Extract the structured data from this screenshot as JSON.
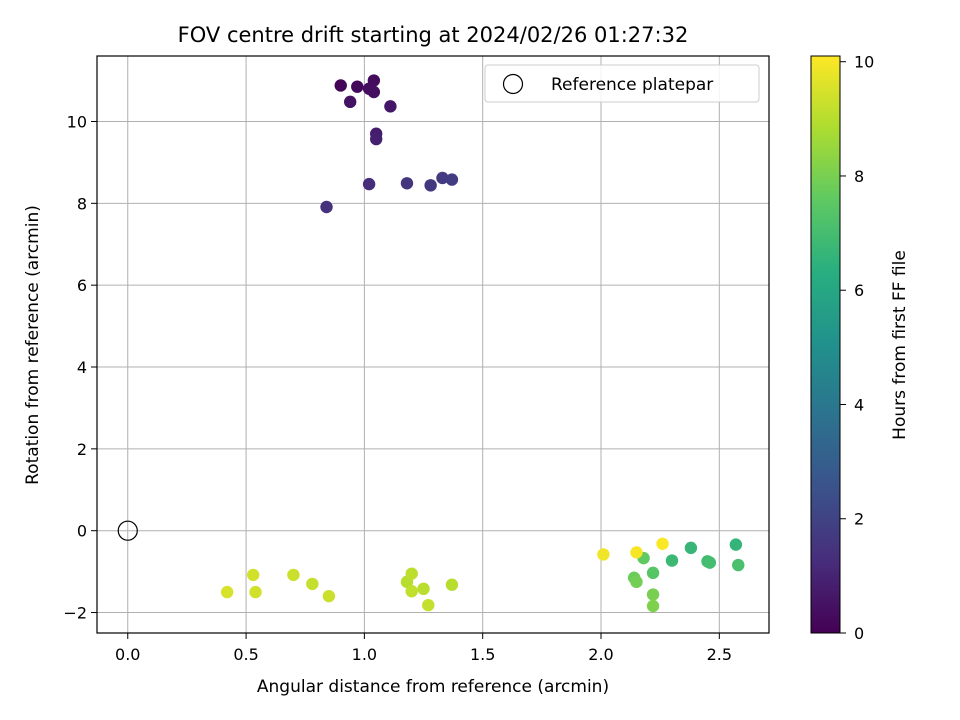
{
  "chart_data": {
    "type": "scatter",
    "title": "FOV centre drift starting at 2024/02/26 01:27:32",
    "xlabel": "Angular distance from reference (arcmin)",
    "ylabel": "Rotation from reference (arcmin)",
    "xlim": [
      -0.13,
      2.71
    ],
    "ylim": [
      -2.5,
      11.6
    ],
    "xticks": [
      0.0,
      0.5,
      1.0,
      1.5,
      2.0,
      2.5
    ],
    "xtick_labels": [
      "0.0",
      "0.5",
      "1.0",
      "1.5",
      "2.0",
      "2.5"
    ],
    "yticks": [
      -2,
      0,
      2,
      4,
      6,
      8,
      10
    ],
    "ytick_labels": [
      "−2",
      "0",
      "2",
      "4",
      "6",
      "8",
      "10"
    ],
    "grid": true,
    "legend_position": "top-right",
    "legend_entries": [
      "Reference platepar"
    ],
    "reference_point": {
      "x": 0.0,
      "y": 0.0
    },
    "colorbar": {
      "label": "Hours from first FF file",
      "colormap": "viridis",
      "range": [
        0,
        10.1
      ],
      "ticks": [
        0,
        2,
        4,
        6,
        8,
        10
      ],
      "tick_labels": [
        "0",
        "2",
        "4",
        "6",
        "8",
        "10"
      ]
    },
    "points": [
      {
        "x": 0.9,
        "y": 10.88,
        "hours": 0.1
      },
      {
        "x": 0.97,
        "y": 10.85,
        "hours": 0.2
      },
      {
        "x": 1.04,
        "y": 11.0,
        "hours": 0.3
      },
      {
        "x": 1.02,
        "y": 10.8,
        "hours": 0.35
      },
      {
        "x": 1.04,
        "y": 10.72,
        "hours": 0.4
      },
      {
        "x": 0.94,
        "y": 10.48,
        "hours": 0.5
      },
      {
        "x": 1.11,
        "y": 10.37,
        "hours": 0.6
      },
      {
        "x": 1.05,
        "y": 9.7,
        "hours": 0.8
      },
      {
        "x": 1.05,
        "y": 9.57,
        "hours": 0.9
      },
      {
        "x": 1.02,
        "y": 8.47,
        "hours": 1.3
      },
      {
        "x": 0.84,
        "y": 7.91,
        "hours": 1.4
      },
      {
        "x": 1.18,
        "y": 8.49,
        "hours": 1.5
      },
      {
        "x": 1.28,
        "y": 8.44,
        "hours": 1.6
      },
      {
        "x": 1.33,
        "y": 8.62,
        "hours": 1.7
      },
      {
        "x": 1.37,
        "y": 8.58,
        "hours": 1.8
      },
      {
        "x": 2.57,
        "y": -0.34,
        "hours": 6.6
      },
      {
        "x": 2.38,
        "y": -0.42,
        "hours": 6.7
      },
      {
        "x": 2.3,
        "y": -0.73,
        "hours": 6.8
      },
      {
        "x": 2.45,
        "y": -0.75,
        "hours": 6.9
      },
      {
        "x": 2.46,
        "y": -0.78,
        "hours": 7.0
      },
      {
        "x": 2.58,
        "y": -0.84,
        "hours": 7.1
      },
      {
        "x": 2.22,
        "y": -1.03,
        "hours": 7.4
      },
      {
        "x": 2.18,
        "y": -0.67,
        "hours": 7.6
      },
      {
        "x": 2.14,
        "y": -1.15,
        "hours": 7.8
      },
      {
        "x": 2.15,
        "y": -1.25,
        "hours": 7.9
      },
      {
        "x": 2.22,
        "y": -1.56,
        "hours": 8.0
      },
      {
        "x": 2.22,
        "y": -1.84,
        "hours": 8.1
      },
      {
        "x": 1.37,
        "y": -1.32,
        "hours": 9.0
      },
      {
        "x": 1.18,
        "y": -1.25,
        "hours": 9.0
      },
      {
        "x": 1.25,
        "y": -1.42,
        "hours": 9.05
      },
      {
        "x": 1.2,
        "y": -1.05,
        "hours": 9.1
      },
      {
        "x": 1.2,
        "y": -1.48,
        "hours": 9.15
      },
      {
        "x": 1.27,
        "y": -1.82,
        "hours": 9.2
      },
      {
        "x": 0.78,
        "y": -1.3,
        "hours": 9.2
      },
      {
        "x": 0.85,
        "y": -1.6,
        "hours": 9.3
      },
      {
        "x": 0.7,
        "y": -1.08,
        "hours": 9.3
      },
      {
        "x": 0.53,
        "y": -1.08,
        "hours": 9.4
      },
      {
        "x": 0.54,
        "y": -1.5,
        "hours": 9.4
      },
      {
        "x": 0.42,
        "y": -1.5,
        "hours": 9.5
      },
      {
        "x": 2.01,
        "y": -0.58,
        "hours": 9.9
      },
      {
        "x": 2.15,
        "y": -0.53,
        "hours": 10.0
      },
      {
        "x": 2.26,
        "y": -0.32,
        "hours": 10.05
      }
    ]
  }
}
